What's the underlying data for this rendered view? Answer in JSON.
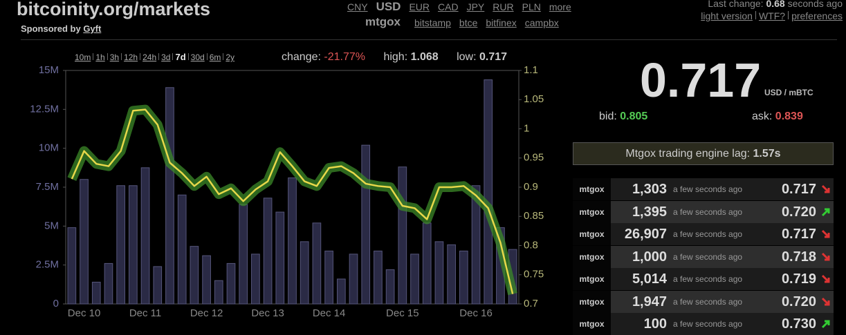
{
  "header": {
    "title": "bitcoinity.org/markets",
    "sponsor_label": "Sponsored by",
    "sponsor": "Gyft",
    "currencies": [
      {
        "label": "CNY"
      },
      {
        "label": "USD",
        "selected": true
      },
      {
        "label": "EUR"
      },
      {
        "label": "CAD"
      },
      {
        "label": "JPY"
      },
      {
        "label": "RUR"
      },
      {
        "label": "PLN"
      },
      {
        "label": "more"
      }
    ],
    "exchange": "mtgox",
    "exchanges": [
      "bitstamp",
      "btce",
      "bitfinex",
      "campbx"
    ],
    "last_change_label": "Last change:",
    "last_change": "0.68",
    "last_change_unit": "seconds ago",
    "links": [
      "light version",
      "WTF?",
      "preferences"
    ]
  },
  "ranges": [
    {
      "label": "10m"
    },
    {
      "label": "1h"
    },
    {
      "label": "3h"
    },
    {
      "label": "12h"
    },
    {
      "label": "24h"
    },
    {
      "label": "3d"
    },
    {
      "label": "7d",
      "selected": true
    },
    {
      "label": "30d"
    },
    {
      "label": "6m"
    },
    {
      "label": "2y"
    }
  ],
  "stats": {
    "change_label": "change:",
    "change": "-21.77%",
    "high_label": "high:",
    "high": "1.068",
    "low_label": "low:",
    "low": "0.717"
  },
  "ticker": {
    "price": "0.717",
    "unit": "USD / mBTC",
    "bid_label": "bid:",
    "bid": "0.805",
    "ask_label": "ask:",
    "ask": "0.839"
  },
  "lag": {
    "label": "Mtgox trading engine lag:",
    "value": "1.57s"
  },
  "trades": [
    {
      "exchange": "mtgox",
      "amount": "1,303",
      "time": "a few seconds ago",
      "price": "0.717",
      "direction": "down"
    },
    {
      "exchange": "mtgox",
      "amount": "1,395",
      "time": "a few seconds ago",
      "price": "0.720",
      "direction": "up"
    },
    {
      "exchange": "mtgox",
      "amount": "26,907",
      "time": "a few seconds ago",
      "price": "0.717",
      "direction": "down"
    },
    {
      "exchange": "mtgox",
      "amount": "1,000",
      "time": "a few seconds ago",
      "price": "0.718",
      "direction": "down"
    },
    {
      "exchange": "mtgox",
      "amount": "5,014",
      "time": "a few seconds ago",
      "price": "0.719",
      "direction": "down"
    },
    {
      "exchange": "mtgox",
      "amount": "1,947",
      "time": "a few seconds ago",
      "price": "0.720",
      "direction": "down"
    },
    {
      "exchange": "mtgox",
      "amount": "100",
      "time": "a few seconds ago",
      "price": "0.730",
      "direction": "up"
    }
  ],
  "chart_data": {
    "type": "bar-line",
    "categories": [
      null,
      "Dec 10",
      null,
      null,
      null,
      null,
      "Dec 11",
      null,
      null,
      null,
      null,
      "Dec 12",
      null,
      null,
      null,
      null,
      "Dec 13",
      null,
      null,
      null,
      null,
      "Dec 14",
      null,
      null,
      null,
      null,
      null,
      "Dec 15",
      null,
      null,
      null,
      null,
      null,
      "Dec 16",
      null,
      null,
      null
    ],
    "series": [
      {
        "type": "bar",
        "color": "#2a2a45",
        "values": [
          4900000,
          8000000,
          1400000,
          2600000,
          7600000,
          7600000,
          8750000,
          2400000,
          13900000,
          7000000,
          3700000,
          3100000,
          1500000,
          2600000,
          6400000,
          3200000,
          6800000,
          5900000,
          8100000,
          4000000,
          5200000,
          3400000,
          1600000,
          3200000,
          10200000,
          3400000,
          2200000,
          8800000,
          3200000,
          5200000,
          4000000,
          3800000,
          3400000,
          7600000,
          14400000,
          4900000,
          3500000
        ]
      },
      {
        "type": "line",
        "axis": "y2",
        "color": "#e8d84a",
        "spread_color": "#3c8a28",
        "values": [
          0.914,
          0.962,
          0.94,
          0.936,
          0.962,
          1.031,
          1.033,
          1.007,
          0.942,
          0.924,
          0.902,
          0.918,
          0.888,
          0.898,
          0.876,
          0.896,
          0.91,
          0.96,
          0.936,
          0.91,
          0.902,
          0.933,
          0.936,
          0.924,
          0.906,
          0.902,
          0.9,
          0.868,
          0.864,
          0.845,
          0.9,
          0.9,
          0.902,
          0.886,
          0.864,
          0.805,
          0.717
        ]
      }
    ],
    "ylim": [
      0,
      15000000
    ],
    "yticks": [
      0,
      {
        "value": 2500000,
        "label": "2.5M"
      },
      {
        "value": 5000000,
        "label": "5M"
      },
      {
        "value": 7500000,
        "label": "7.5M"
      },
      {
        "value": 10000000,
        "label": "10M"
      },
      {
        "value": 12500000,
        "label": "12.5M"
      },
      {
        "value": 15000000,
        "label": "15M"
      }
    ],
    "y2lim": [
      0.7,
      1.1
    ],
    "y2ticks": [
      0.7,
      0.75,
      0.8,
      0.85,
      0.9,
      0.95,
      1,
      1.05,
      1.1
    ],
    "grid": false
  }
}
